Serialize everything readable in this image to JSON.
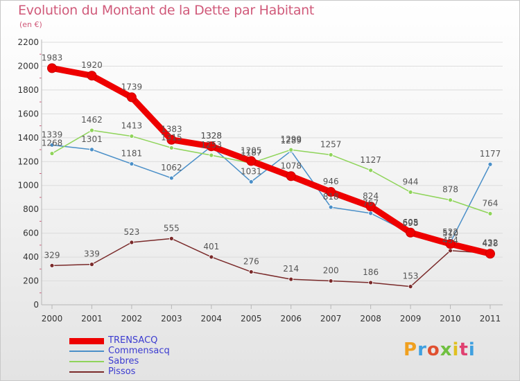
{
  "title": "Evolution du Montant de la Dette par Habitant",
  "subtitle": "(en €)",
  "logo": "Proxiti",
  "colors": {
    "title": "#d05a7a",
    "axis": "#b5b5b5",
    "grid": "#dcdcdc",
    "tick_label": "#333333",
    "data_label": "#555555",
    "legend_text": "#3b3bd0"
  },
  "chart_data": {
    "type": "line",
    "title": "Evolution du Montant de la Dette par Habitant",
    "subtitle": "(en €)",
    "x": [
      "2000",
      "2001",
      "2002",
      "2003",
      "2004",
      "2005",
      "2006",
      "2007",
      "2008",
      "2009",
      "2010",
      "2011"
    ],
    "ylim": [
      0,
      2200
    ],
    "yticks": [
      0,
      200,
      400,
      600,
      800,
      1000,
      1200,
      1400,
      1600,
      1800,
      2000,
      2200
    ],
    "grid": true,
    "legend_position": "bottom-left",
    "series": [
      {
        "name": "TRENSACQ",
        "color": "#ee0000",
        "marker_fill": "#ee0000",
        "emphasis": true,
        "values": [
          1983,
          1920,
          1739,
          1383,
          1328,
          1205,
          1078,
          946,
          824,
          605,
          510,
          428
        ]
      },
      {
        "name": "Commensacq",
        "color": "#4a8fc8",
        "marker_fill": "#4a8fc8",
        "emphasis": false,
        "values": [
          1339,
          1301,
          1181,
          1062,
          1328,
          1031,
          1289,
          818,
          767,
          598,
          522,
          1177
        ]
      },
      {
        "name": "Sabres",
        "color": "#8fd45a",
        "marker_fill": "#8fd45a",
        "emphasis": false,
        "values": [
          1268,
          1462,
          1413,
          1315,
          1253,
          1187,
          1299,
          1257,
          1127,
          944,
          878,
          764
        ]
      },
      {
        "name": "Pissos",
        "color": "#7a2a2a",
        "marker_fill": "#7a2a2a",
        "emphasis": false,
        "values": [
          329,
          339,
          523,
          555,
          401,
          276,
          214,
          200,
          186,
          153,
          454,
          432
        ]
      }
    ]
  }
}
